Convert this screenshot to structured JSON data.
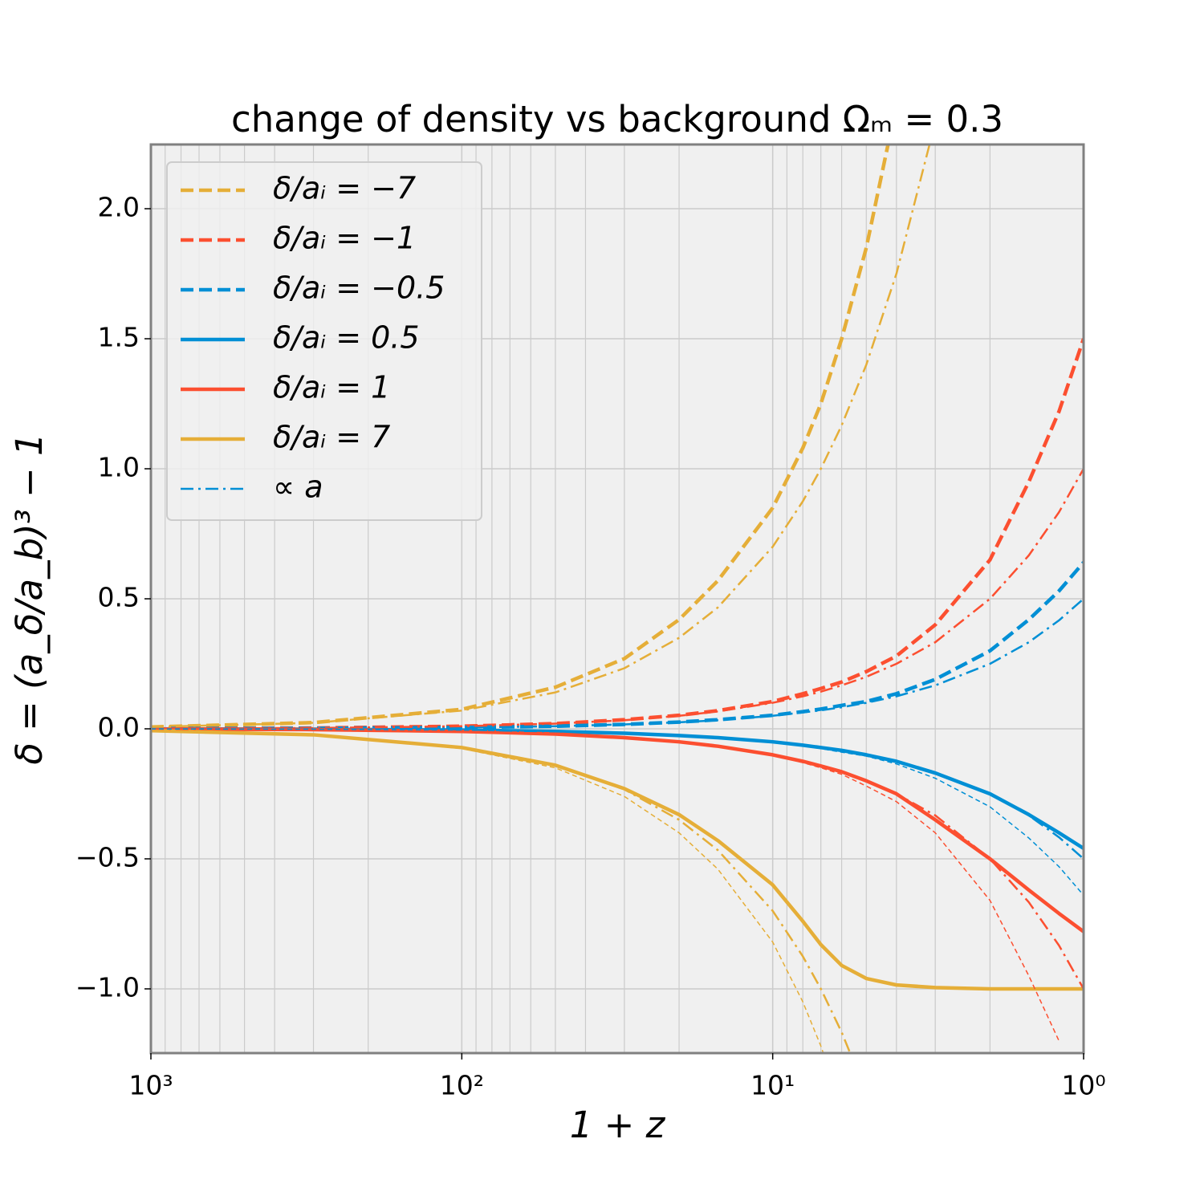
{
  "chart_data": {
    "type": "line",
    "title": "change of density vs background Ωₘ = 0.3",
    "xlabel": "1 + z",
    "ylabel": "δ = (a_δ/a_b)³ − 1",
    "xscale": "log",
    "grid": true,
    "legend": "upper left",
    "xlim": [
      1000,
      1
    ],
    "ylim": [
      -1.247,
      2.247
    ],
    "xticks": [
      {
        "value": 1000,
        "label": "10³"
      },
      {
        "value": 100,
        "label": "10²"
      },
      {
        "value": 10,
        "label": "10¹"
      },
      {
        "value": 1,
        "label": "10⁰"
      }
    ],
    "yticks": [
      {
        "value": -1,
        "label": "−1.0"
      },
      {
        "value": -0.5,
        "label": "−0.5"
      },
      {
        "value": 0,
        "label": "0.0"
      },
      {
        "value": 0.5,
        "label": "0.5"
      },
      {
        "value": 1,
        "label": "1.0"
      },
      {
        "value": 1.5,
        "label": "1.5"
      },
      {
        "value": 2,
        "label": "2.0"
      }
    ],
    "x": [
      1000,
      300,
      100,
      50,
      30,
      20,
      15,
      10,
      8,
      7,
      6,
      5,
      4,
      3,
      2,
      1.5,
      1.2,
      1
    ],
    "series": [
      {
        "name": "δ/aᵢ = −7",
        "color": "#e5ae38",
        "style": "dashed",
        "linewidth": 4.5,
        "values": [
          0.007,
          0.024,
          0.075,
          0.16,
          0.27,
          0.42,
          0.57,
          0.85,
          1.08,
          1.25,
          1.5,
          1.85,
          2.4,
          null,
          null,
          null,
          null,
          null
        ]
      },
      {
        "name": "δ/aᵢ = −1",
        "color": "#fc4f30",
        "style": "dashed",
        "linewidth": 4.5,
        "values": [
          0.001,
          0.003,
          0.01,
          0.02,
          0.035,
          0.052,
          0.07,
          0.105,
          0.135,
          0.155,
          0.18,
          0.22,
          0.28,
          0.4,
          0.65,
          0.95,
          1.22,
          1.5
        ]
      },
      {
        "name": "δ/aᵢ = −0.5",
        "color": "#008fd5",
        "style": "dashed",
        "linewidth": 4.5,
        "values": [
          0.0005,
          0.0017,
          0.005,
          0.01,
          0.017,
          0.026,
          0.035,
          0.052,
          0.066,
          0.076,
          0.09,
          0.105,
          0.135,
          0.19,
          0.3,
          0.42,
          0.53,
          0.64
        ]
      },
      {
        "name": "δ/aᵢ = 0.5",
        "color": "#008fd5",
        "style": "solid",
        "linewidth": 4.5,
        "values": [
          -0.0005,
          -0.0017,
          -0.005,
          -0.01,
          -0.017,
          -0.026,
          -0.034,
          -0.05,
          -0.063,
          -0.072,
          -0.083,
          -0.1,
          -0.125,
          -0.17,
          -0.25,
          -0.33,
          -0.4,
          -0.46
        ]
      },
      {
        "name": "δ/aᵢ = 1",
        "color": "#fc4f30",
        "style": "solid",
        "linewidth": 4.5,
        "values": [
          -0.001,
          -0.003,
          -0.01,
          -0.02,
          -0.034,
          -0.05,
          -0.067,
          -0.1,
          -0.125,
          -0.143,
          -0.165,
          -0.2,
          -0.25,
          -0.35,
          -0.5,
          -0.62,
          -0.71,
          -0.78
        ]
      },
      {
        "name": "δ/aᵢ = 7",
        "color": "#e5ae38",
        "style": "solid",
        "linewidth": 4.5,
        "values": [
          -0.007,
          -0.023,
          -0.072,
          -0.14,
          -0.23,
          -0.33,
          -0.43,
          -0.6,
          -0.74,
          -0.83,
          -0.91,
          -0.96,
          -0.985,
          -0.995,
          -1.0,
          -1.0,
          -1.0,
          -1.0
        ]
      },
      {
        "name": "∝ a",
        "color": "#008fd5",
        "style": "dashdot",
        "linewidth": 2.5,
        "values": [
          0.0005,
          0.0017,
          0.005,
          0.01,
          0.017,
          0.025,
          0.033,
          0.05,
          0.063,
          0.071,
          0.083,
          0.1,
          0.125,
          0.167,
          0.25,
          0.333,
          0.417,
          0.5
        ]
      },
      {
        "color": "#fc4f30",
        "style": "dashdot",
        "linewidth": 2.5,
        "values": [
          0.001,
          0.003,
          0.01,
          0.02,
          0.033,
          0.05,
          0.067,
          0.1,
          0.125,
          0.143,
          0.167,
          0.2,
          0.25,
          0.333,
          0.5,
          0.667,
          0.833,
          1.0
        ]
      },
      {
        "color": "#e5ae38",
        "style": "dashdot",
        "linewidth": 2.5,
        "values": [
          0.007,
          0.023,
          0.07,
          0.14,
          0.233,
          0.35,
          0.467,
          0.7,
          0.875,
          1.0,
          1.167,
          1.4,
          1.75,
          2.333,
          null,
          null,
          null,
          null
        ]
      },
      {
        "color": "#008fd5",
        "style": "dashdot",
        "linewidth": 2.5,
        "values": [
          -0.0005,
          -0.0017,
          -0.005,
          -0.01,
          -0.017,
          -0.025,
          -0.033,
          -0.05,
          -0.063,
          -0.071,
          -0.083,
          -0.1,
          -0.125,
          -0.167,
          -0.25,
          -0.333,
          -0.417,
          -0.5
        ]
      },
      {
        "color": "#fc4f30",
        "style": "dashdot",
        "linewidth": 2.5,
        "values": [
          -0.001,
          -0.003,
          -0.01,
          -0.02,
          -0.033,
          -0.05,
          -0.067,
          -0.1,
          -0.125,
          -0.143,
          -0.167,
          -0.2,
          -0.25,
          -0.333,
          -0.5,
          -0.667,
          -0.833,
          -1.0
        ]
      },
      {
        "color": "#e5ae38",
        "style": "dashdot",
        "linewidth": 2.5,
        "values": [
          -0.007,
          -0.023,
          -0.07,
          -0.14,
          -0.233,
          -0.35,
          -0.467,
          -0.7,
          -0.875,
          -1.0,
          -1.167,
          -1.4,
          null,
          null,
          null,
          null,
          null,
          null
        ]
      },
      {
        "color": "#e5ae38",
        "style": "dashed",
        "linewidth": 1.5,
        "values": [
          -0.007,
          -0.024,
          -0.076,
          -0.15,
          -0.26,
          -0.4,
          -0.54,
          -0.82,
          -1.05,
          -1.22,
          -1.45,
          null,
          null,
          null,
          null,
          null,
          null,
          null
        ]
      },
      {
        "color": "#fc4f30",
        "style": "dashed",
        "linewidth": 1.5,
        "values": [
          -0.001,
          -0.003,
          -0.01,
          -0.02,
          -0.034,
          -0.05,
          -0.068,
          -0.1,
          -0.13,
          -0.15,
          -0.175,
          -0.22,
          -0.28,
          -0.4,
          -0.66,
          -0.95,
          -1.2,
          null
        ]
      },
      {
        "color": "#008fd5",
        "style": "dashed",
        "linewidth": 1.5,
        "values": [
          -0.0005,
          -0.0017,
          -0.005,
          -0.01,
          -0.017,
          -0.026,
          -0.035,
          -0.052,
          -0.066,
          -0.076,
          -0.09,
          -0.105,
          -0.135,
          -0.19,
          -0.3,
          -0.42,
          -0.53,
          -0.64
        ]
      }
    ]
  }
}
